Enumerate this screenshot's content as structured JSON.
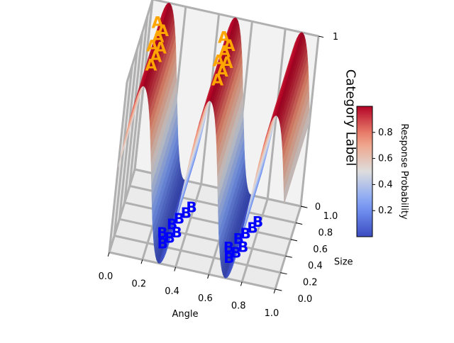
{
  "chart_data": {
    "type": "surface3d",
    "xlabel": "Angle",
    "ylabel": "Size",
    "zlabel": "Category Label",
    "x_ticks": [
      "0.0",
      "0.2",
      "0.4",
      "0.6",
      "0.8",
      "1.0"
    ],
    "y_ticks": [
      "0.0",
      "0.2",
      "0.4",
      "0.6",
      "0.8",
      "1.0"
    ],
    "z_ticks": [
      "0",
      "1"
    ],
    "xlim": [
      0,
      1
    ],
    "ylim": [
      0,
      1
    ],
    "zlim": [
      0,
      1
    ],
    "surface": {
      "function": "response probability = (1 + sin(5*pi*Angle)) / 2, constant along Size",
      "angle": [
        0.0,
        0.1,
        0.2,
        0.3,
        0.4,
        0.5,
        0.6,
        0.7,
        0.8,
        0.9,
        1.0
      ],
      "probability": [
        0.5,
        1.0,
        0.5,
        0.0,
        0.5,
        1.0,
        0.5,
        0.0,
        0.5,
        1.0,
        0.5
      ]
    },
    "colorbar": {
      "label": "Response Probability",
      "colormap": "coolwarm",
      "ticks": [
        "0.2",
        "0.4",
        "0.6",
        "0.8"
      ],
      "range": [
        0,
        1
      ]
    },
    "markers": [
      {
        "text": "A",
        "color": "#FFA500",
        "category": 1,
        "placement": "peaks"
      },
      {
        "text": "B",
        "color": "#0000FF",
        "category": 0,
        "placement": "troughs"
      }
    ],
    "grid": true
  }
}
